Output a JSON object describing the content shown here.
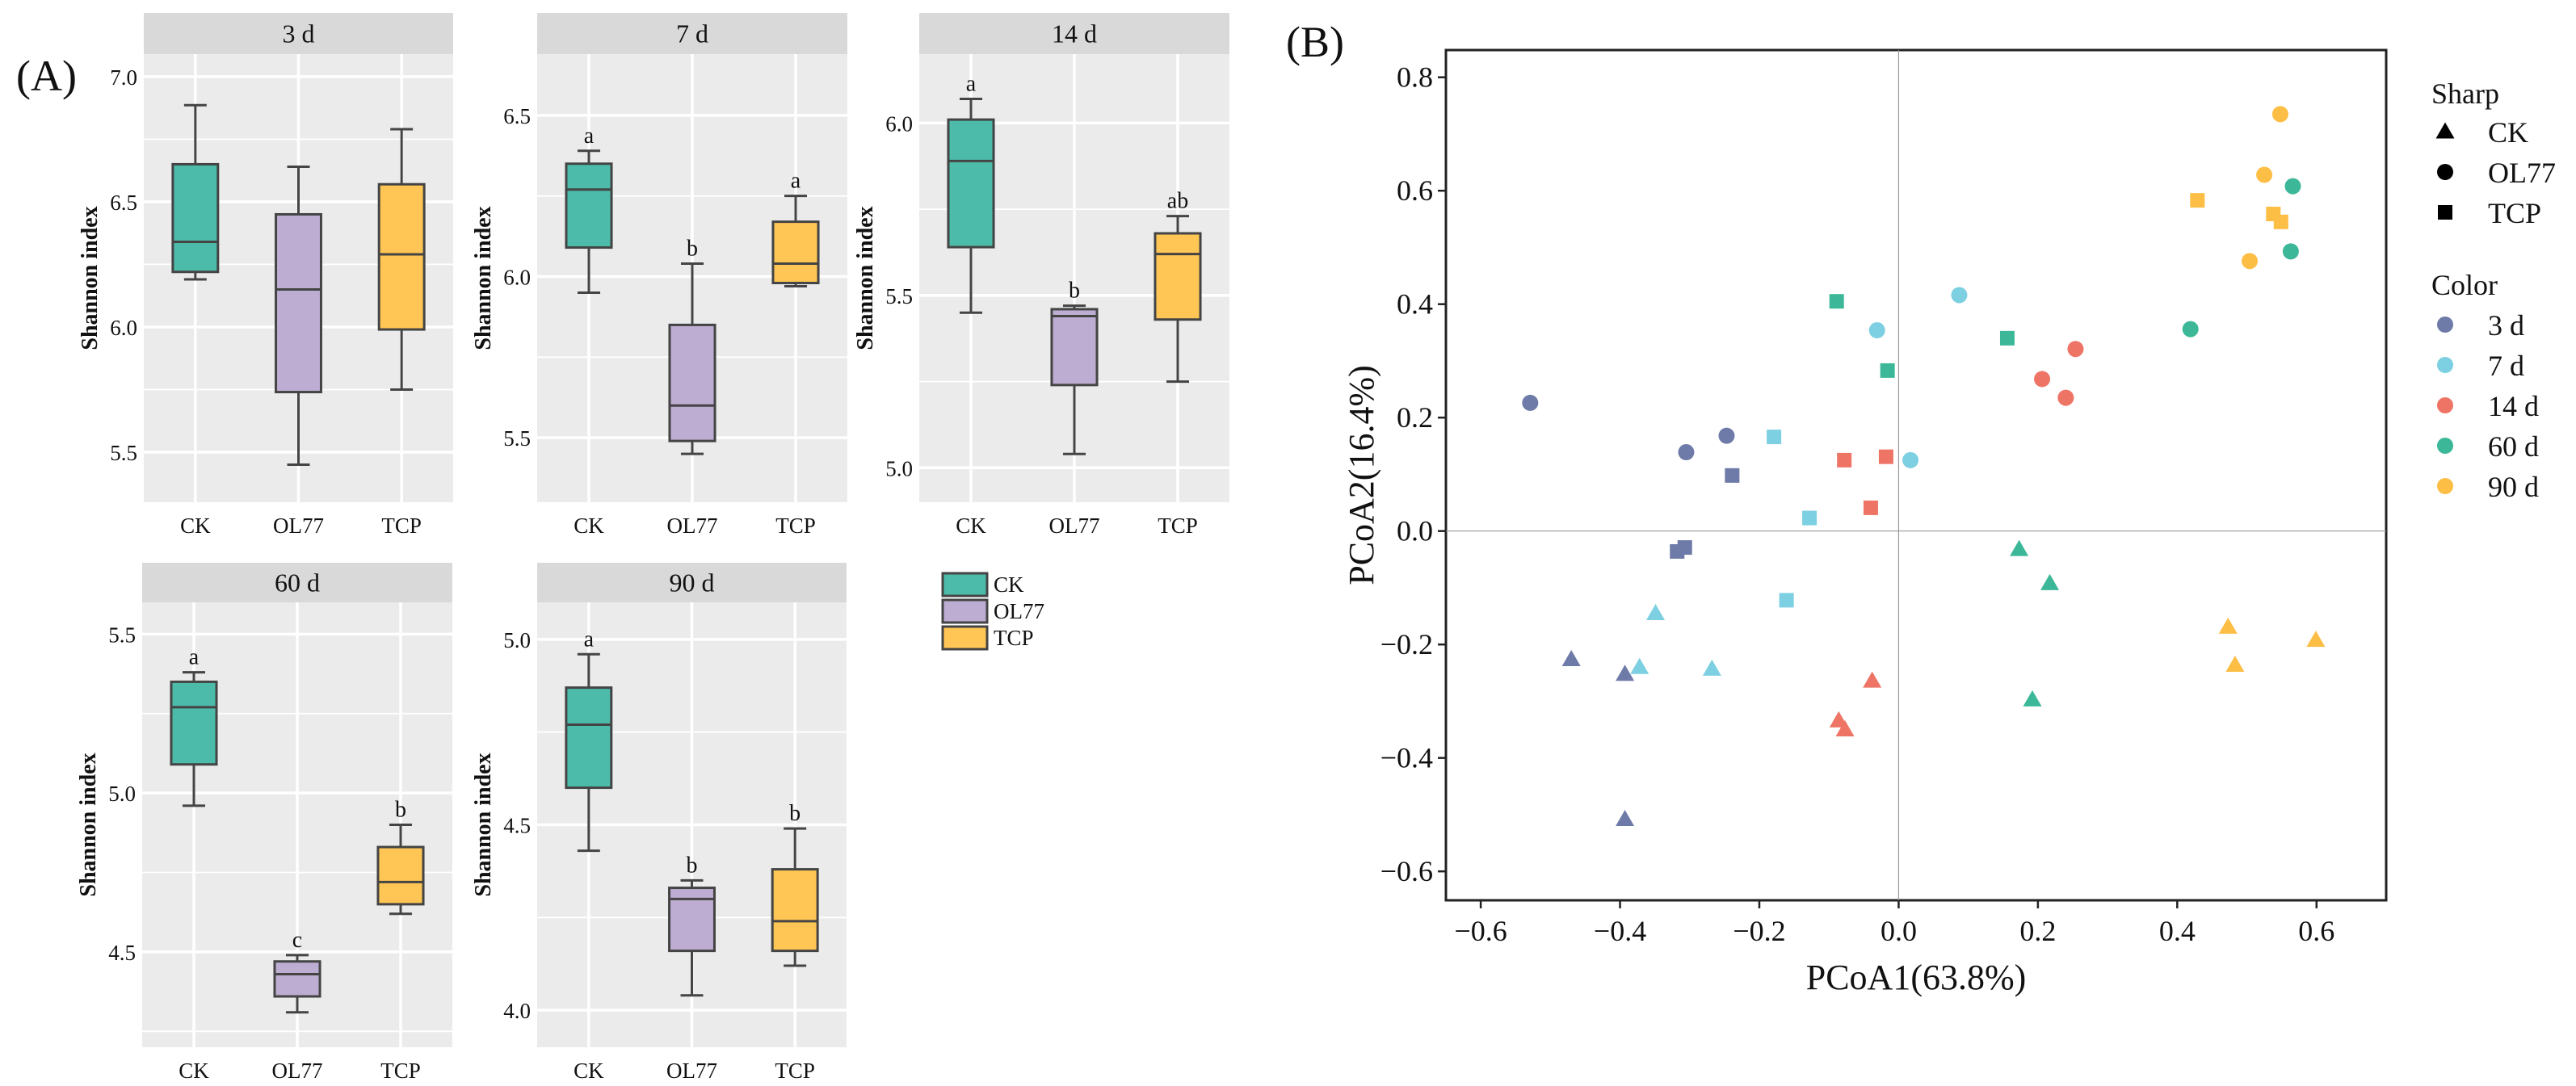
{
  "panel_labels": {
    "a": "(A)",
    "b": "(B)"
  },
  "colors": {
    "groups": {
      "CK": "#4DBBAA",
      "OL77": "#BEADD2",
      "TCP": "#FFC655"
    },
    "times": {
      "3 d": "#6E7BA8",
      "7 d": "#7DD0E2",
      "14 d": "#EE7466",
      "60 d": "#3CB898",
      "90 d": "#FDBE45"
    },
    "strip": "#D9D9D9",
    "panel_bg": "#EBEBEB",
    "box_line": "#444444"
  },
  "box_legend": {
    "items": [
      "CK",
      "OL77",
      "TCP"
    ]
  },
  "chart_data": [
    {
      "type": "box",
      "title": "3 d",
      "ylabel": "Shannon index",
      "categories": [
        "CK",
        "OL77",
        "TCP"
      ],
      "ylim": [
        5.3,
        7.09
      ],
      "yticks": [
        5.5,
        6.0,
        6.5,
        7.0
      ],
      "ytick_labels": [
        "5.5",
        "6.0",
        "6.5",
        "7.0"
      ],
      "boxes": [
        {
          "min": 6.19,
          "q1": 6.22,
          "median": 6.34,
          "q3": 6.65,
          "max": 6.886,
          "label": ""
        },
        {
          "min": 5.45,
          "q1": 5.74,
          "median": 6.15,
          "q3": 6.45,
          "max": 6.64,
          "label": ""
        },
        {
          "min": 5.75,
          "q1": 5.99,
          "median": 6.29,
          "q3": 6.57,
          "max": 6.79,
          "label": ""
        }
      ]
    },
    {
      "type": "box",
      "title": "7 d",
      "ylabel": "Shannon index",
      "categories": [
        "CK",
        "OL77",
        "TCP"
      ],
      "ylim": [
        5.3,
        6.69
      ],
      "yticks": [
        5.5,
        6.0,
        6.5
      ],
      "ytick_labels": [
        "5.5",
        "6.0",
        "6.5"
      ],
      "boxes": [
        {
          "min": 5.95,
          "q1": 6.09,
          "median": 6.27,
          "q3": 6.35,
          "max": 6.39,
          "label": "a"
        },
        {
          "min": 5.45,
          "q1": 5.49,
          "median": 5.6,
          "q3": 5.85,
          "max": 6.04,
          "label": "b"
        },
        {
          "min": 5.97,
          "q1": 5.98,
          "median": 6.04,
          "q3": 6.17,
          "max": 6.25,
          "label": "a"
        }
      ]
    },
    {
      "type": "box",
      "title": "14 d",
      "ylabel": "Shannon index",
      "categories": [
        "CK",
        "OL77",
        "TCP"
      ],
      "ylim": [
        4.9,
        6.2
      ],
      "yticks": [
        5.0,
        5.5,
        6.0
      ],
      "ytick_labels": [
        "5.0",
        "5.5",
        "6.0"
      ],
      "boxes": [
        {
          "min": 5.45,
          "q1": 5.64,
          "median": 5.89,
          "q3": 6.01,
          "max": 6.07,
          "label": "a"
        },
        {
          "min": 5.04,
          "q1": 5.24,
          "median": 5.44,
          "q3": 5.46,
          "max": 5.47,
          "label": "b"
        },
        {
          "min": 5.25,
          "q1": 5.43,
          "median": 5.62,
          "q3": 5.68,
          "max": 5.73,
          "label": "ab"
        }
      ]
    },
    {
      "type": "box",
      "title": "60 d",
      "ylabel": "Shannon index",
      "categories": [
        "CK",
        "OL77",
        "TCP"
      ],
      "ylim": [
        4.2,
        5.6
      ],
      "yticks": [
        4.5,
        5.0,
        5.5
      ],
      "ytick_labels": [
        "4.5",
        "5.0",
        "5.5"
      ],
      "boxes": [
        {
          "min": 4.96,
          "q1": 5.09,
          "median": 5.27,
          "q3": 5.35,
          "max": 5.38,
          "label": "a"
        },
        {
          "min": 4.31,
          "q1": 4.36,
          "median": 4.43,
          "q3": 4.47,
          "max": 4.49,
          "label": "c"
        },
        {
          "min": 4.62,
          "q1": 4.65,
          "median": 4.72,
          "q3": 4.83,
          "max": 4.9,
          "label": "b"
        }
      ]
    },
    {
      "type": "box",
      "title": "90 d",
      "ylabel": "Shannon index",
      "categories": [
        "CK",
        "OL77",
        "TCP"
      ],
      "ylim": [
        3.9,
        5.1
      ],
      "yticks": [
        4.0,
        4.5,
        5.0
      ],
      "ytick_labels": [
        "4.0",
        "4.5",
        "5.0"
      ],
      "boxes": [
        {
          "min": 4.43,
          "q1": 4.6,
          "median": 4.77,
          "q3": 4.87,
          "max": 4.96,
          "label": "a"
        },
        {
          "min": 4.04,
          "q1": 4.16,
          "median": 4.3,
          "q3": 4.33,
          "max": 4.35,
          "label": "b"
        },
        {
          "min": 4.12,
          "q1": 4.16,
          "median": 4.24,
          "q3": 4.38,
          "max": 4.49,
          "label": "b"
        }
      ]
    },
    {
      "type": "scatter",
      "title": "",
      "xlabel": "PCoA1(63.8%)",
      "ylabel": "PCoA2(16.4%)",
      "xlim": [
        -0.65,
        0.7
      ],
      "ylim": [
        -0.651,
        0.848
      ],
      "xticks": [
        -0.6,
        -0.4,
        -0.2,
        0.0,
        0.2,
        0.4,
        0.6
      ],
      "xtick_labels": [
        "−0.6",
        "−0.4",
        "−0.2",
        "0.0",
        "0.2",
        "0.4",
        "0.6"
      ],
      "yticks": [
        -0.6,
        -0.4,
        -0.2,
        0.0,
        0.2,
        0.4,
        0.6,
        0.8
      ],
      "ytick_labels": [
        "−0.6",
        "−0.4",
        "−0.2",
        "0.0",
        "0.2",
        "0.4",
        "0.6",
        "0.8"
      ],
      "legend": {
        "shape_title": "Sharp",
        "shapes": [
          {
            "label": "CK",
            "shape": "triangle"
          },
          {
            "label": "OL77",
            "shape": "circle"
          },
          {
            "label": "TCP",
            "shape": "square"
          }
        ],
        "color_title": "Color",
        "colors": [
          "3 d",
          "7 d",
          "14 d",
          "60 d",
          "90 d"
        ],
        "position": "right"
      },
      "series": [
        {
          "time": "3 d",
          "points": [
            {
              "g": "OL77",
              "x": -0.529,
              "y": 0.226
            },
            {
              "g": "OL77",
              "x": -0.305,
              "y": 0.139
            },
            {
              "g": "OL77",
              "x": -0.247,
              "y": 0.168
            },
            {
              "g": "TCP",
              "x": -0.239,
              "y": 0.098
            },
            {
              "g": "TCP",
              "x": -0.318,
              "y": -0.036
            },
            {
              "g": "TCP",
              "x": -0.307,
              "y": -0.029
            },
            {
              "g": "CK",
              "x": -0.47,
              "y": -0.226
            },
            {
              "g": "CK",
              "x": -0.393,
              "y": -0.252
            },
            {
              "g": "CK",
              "x": -0.393,
              "y": -0.508
            }
          ]
        },
        {
          "time": "7 d",
          "points": [
            {
              "g": "OL77",
              "x": -0.031,
              "y": 0.354
            },
            {
              "g": "OL77",
              "x": 0.087,
              "y": 0.416
            },
            {
              "g": "OL77",
              "x": 0.017,
              "y": 0.125
            },
            {
              "g": "TCP",
              "x": -0.179,
              "y": 0.166
            },
            {
              "g": "TCP",
              "x": -0.128,
              "y": 0.023
            },
            {
              "g": "TCP",
              "x": -0.161,
              "y": -0.122
            },
            {
              "g": "CK",
              "x": -0.349,
              "y": -0.145
            },
            {
              "g": "CK",
              "x": -0.372,
              "y": -0.24
            },
            {
              "g": "CK",
              "x": -0.268,
              "y": -0.243
            }
          ]
        },
        {
          "time": "14 d",
          "points": [
            {
              "g": "OL77",
              "x": 0.206,
              "y": 0.268
            },
            {
              "g": "OL77",
              "x": 0.254,
              "y": 0.321
            },
            {
              "g": "OL77",
              "x": 0.24,
              "y": 0.235
            },
            {
              "g": "TCP",
              "x": -0.078,
              "y": 0.125
            },
            {
              "g": "TCP",
              "x": -0.018,
              "y": 0.131
            },
            {
              "g": "TCP",
              "x": -0.04,
              "y": 0.041
            },
            {
              "g": "CK",
              "x": -0.038,
              "y": -0.264
            },
            {
              "g": "CK",
              "x": -0.086,
              "y": -0.334
            },
            {
              "g": "CK",
              "x": -0.077,
              "y": -0.35
            }
          ]
        },
        {
          "time": "60 d",
          "points": [
            {
              "g": "OL77",
              "x": 0.419,
              "y": 0.356
            },
            {
              "g": "OL77",
              "x": 0.566,
              "y": 0.608
            },
            {
              "g": "OL77",
              "x": 0.563,
              "y": 0.493
            },
            {
              "g": "TCP",
              "x": -0.089,
              "y": 0.405
            },
            {
              "g": "TCP",
              "x": -0.016,
              "y": 0.283
            },
            {
              "g": "TCP",
              "x": 0.156,
              "y": 0.34
            },
            {
              "g": "CK",
              "x": 0.173,
              "y": -0.032
            },
            {
              "g": "CK",
              "x": 0.217,
              "y": -0.092
            },
            {
              "g": "CK",
              "x": 0.192,
              "y": -0.297
            }
          ]
        },
        {
          "time": "90 d",
          "points": [
            {
              "g": "OL77",
              "x": 0.548,
              "y": 0.735
            },
            {
              "g": "OL77",
              "x": 0.525,
              "y": 0.628
            },
            {
              "g": "OL77",
              "x": 0.504,
              "y": 0.476
            },
            {
              "g": "TCP",
              "x": 0.429,
              "y": 0.583
            },
            {
              "g": "TCP",
              "x": 0.538,
              "y": 0.559
            },
            {
              "g": "TCP",
              "x": 0.549,
              "y": 0.545
            },
            {
              "g": "CK",
              "x": 0.473,
              "y": -0.169
            },
            {
              "g": "CK",
              "x": 0.483,
              "y": -0.236
            },
            {
              "g": "CK",
              "x": 0.599,
              "y": -0.192
            }
          ]
        }
      ]
    }
  ]
}
